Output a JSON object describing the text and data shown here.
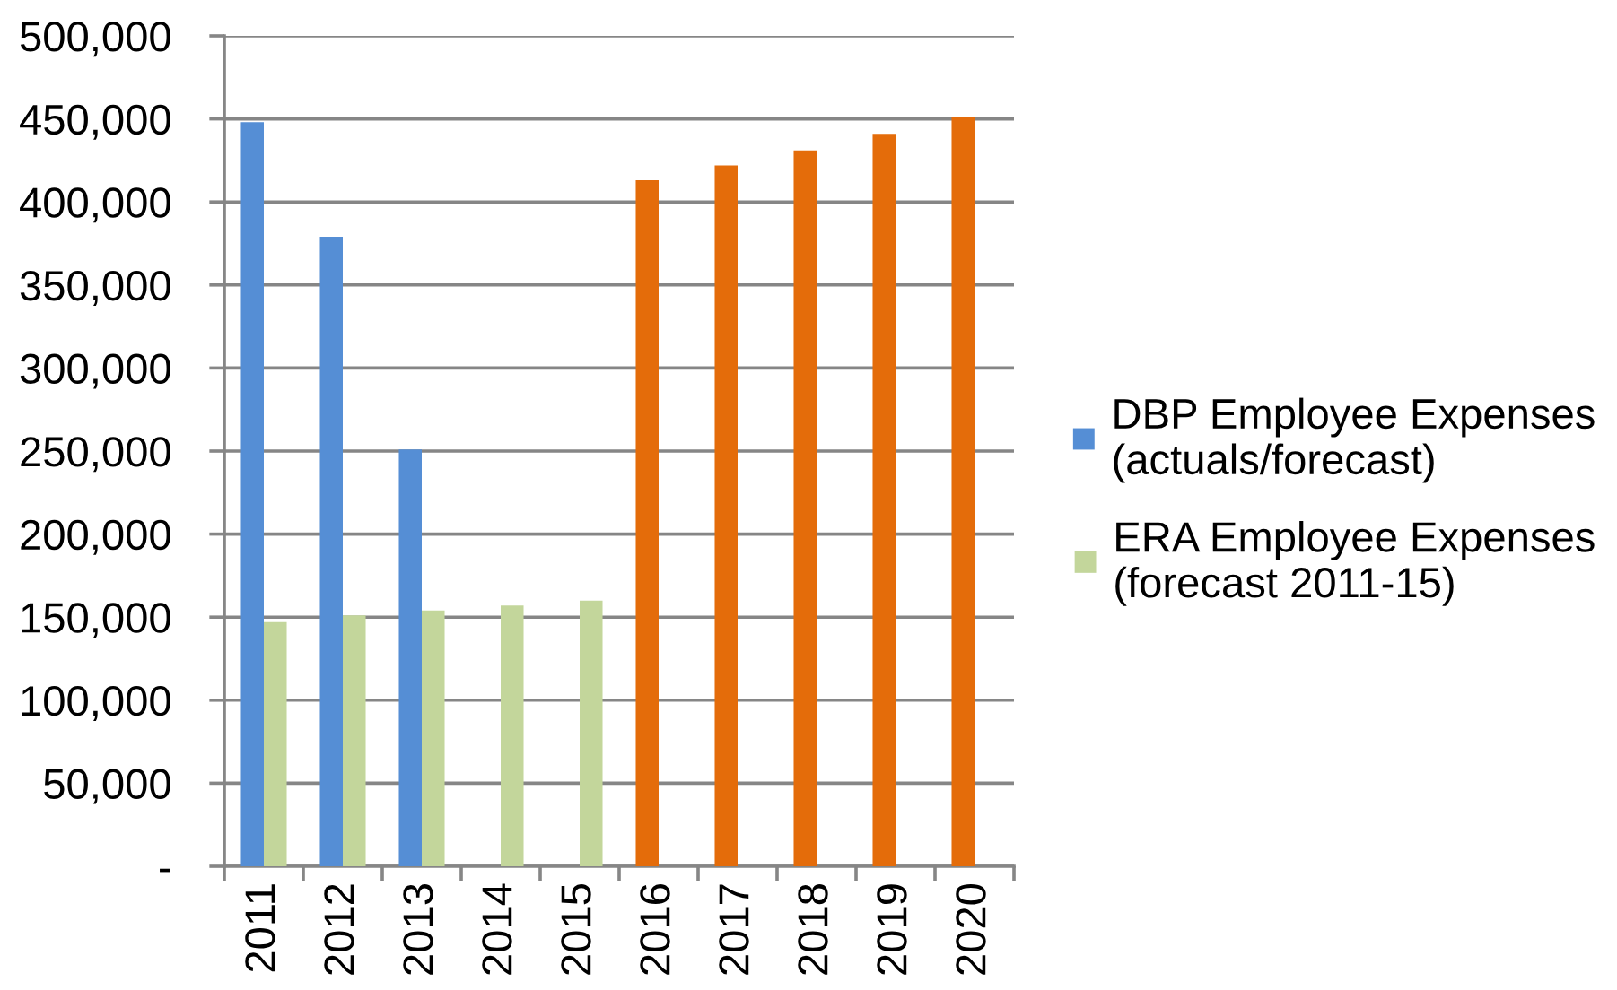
{
  "chart_data": {
    "type": "bar",
    "categories": [
      "2011",
      "2012",
      "2013",
      "2014",
      "2015",
      "2016",
      "2017",
      "2018",
      "2019",
      "2020"
    ],
    "series": [
      {
        "name": "DBP Employee Expenses (actuals/forecast)",
        "color": "#558ed5",
        "colors": [
          "#558ed5",
          "#558ed5",
          "#558ed5",
          null,
          null,
          "#e46c0a",
          "#e46c0a",
          "#e46c0a",
          "#e46c0a",
          "#e46c0a"
        ],
        "values": [
          448000,
          379000,
          251000,
          null,
          null,
          413000,
          422000,
          431000,
          441000,
          451000
        ]
      },
      {
        "name": "ERA Employee Expenses (forecast 2011-15)",
        "color": "#c3d69b",
        "values": [
          147000,
          151000,
          154000,
          157000,
          160000,
          null,
          null,
          null,
          null,
          null
        ]
      }
    ],
    "ylim": [
      0,
      500000
    ],
    "yticks": [
      {
        "value": 0,
        "label": "-"
      },
      {
        "value": 50000,
        "label": "50,000"
      },
      {
        "value": 100000,
        "label": "100,000"
      },
      {
        "value": 150000,
        "label": "150,000"
      },
      {
        "value": 200000,
        "label": "200,000"
      },
      {
        "value": 250000,
        "label": "250,000"
      },
      {
        "value": 300000,
        "label": "300,000"
      },
      {
        "value": 350000,
        "label": "350,000"
      },
      {
        "value": 400000,
        "label": "400,000"
      },
      {
        "value": 450000,
        "label": "450,000"
      },
      {
        "value": 500000,
        "label": "500,000"
      }
    ],
    "grid": "y",
    "legend": "right"
  }
}
